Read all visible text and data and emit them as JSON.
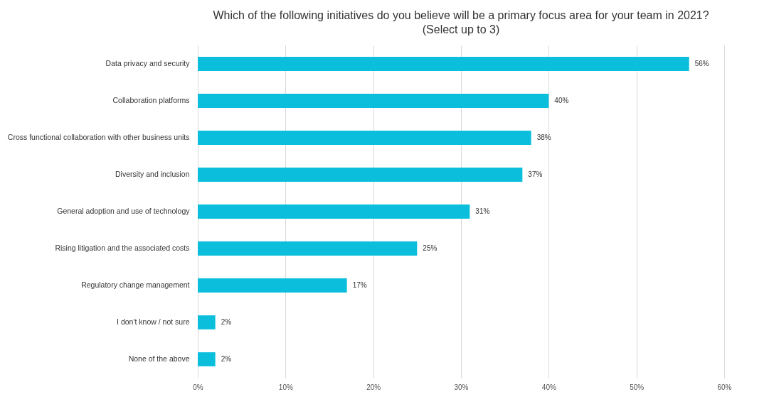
{
  "chart_data": {
    "type": "bar",
    "orientation": "horizontal",
    "title": "Which of the following initiatives do you believe will be a primary focus area for your team in 2021?",
    "subtitle": "(Select up to 3)",
    "categories": [
      "Data privacy and security",
      "Collaboration platforms",
      "Cross functional collaboration with other business units",
      "Diversity and inclusion",
      "General adoption and use of technology",
      "Rising litigation and the associated costs",
      "Regulatory change management",
      "I don't know / not sure",
      "None of the above"
    ],
    "values": [
      56,
      40,
      38,
      37,
      31,
      25,
      17,
      2,
      2
    ],
    "value_labels": [
      "56%",
      "40%",
      "38%",
      "37%",
      "31%",
      "25%",
      "17%",
      "2%",
      "2%"
    ],
    "color": "#0bbfdc",
    "xlim": [
      0,
      60
    ],
    "xticks": [
      {
        "value": 0,
        "label": "0%"
      },
      {
        "value": 10,
        "label": "10%"
      },
      {
        "value": 20,
        "label": "20%"
      },
      {
        "value": 30,
        "label": "30%"
      },
      {
        "value": 40,
        "label": "40%"
      },
      {
        "value": 50,
        "label": "50%"
      },
      {
        "value": 60,
        "label": "60%"
      }
    ],
    "grid": "x"
  }
}
